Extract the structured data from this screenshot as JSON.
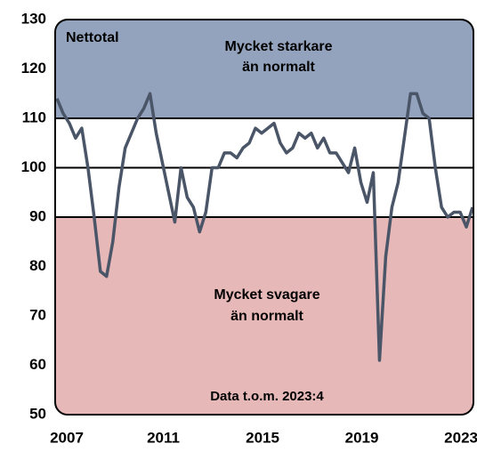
{
  "chart_data": {
    "type": "line",
    "annotations": [
      "Nettotal",
      "Mycket starkare",
      "än normalt",
      "Mycket svagare",
      "än normalt",
      "Data t.o.m. 2023:4"
    ],
    "x": [
      2007,
      2007.25,
      2007.5,
      2007.75,
      2008,
      2008.25,
      2008.5,
      2008.75,
      2009,
      2009.25,
      2009.5,
      2009.75,
      2010,
      2010.25,
      2010.5,
      2010.75,
      2011,
      2011.25,
      2011.5,
      2011.75,
      2012,
      2012.25,
      2012.5,
      2012.75,
      2013,
      2013.25,
      2013.5,
      2013.75,
      2014,
      2014.25,
      2014.5,
      2014.75,
      2015,
      2015.25,
      2015.5,
      2015.75,
      2016,
      2016.25,
      2016.5,
      2016.75,
      2017,
      2017.25,
      2017.5,
      2017.75,
      2018,
      2018.25,
      2018.5,
      2018.75,
      2019,
      2019.25,
      2019.5,
      2019.75,
      2020,
      2020.25,
      2020.5,
      2020.75,
      2021,
      2021.25,
      2021.5,
      2021.75,
      2022,
      2022.25,
      2022.5,
      2022.75,
      2023,
      2023.25,
      2023.5,
      2023.75
    ],
    "series": [
      {
        "name": "Nettotal",
        "color": "#4a5568",
        "values": [
          114,
          111,
          109,
          106,
          108,
          100,
          90,
          79,
          78,
          85,
          96,
          104,
          107,
          110,
          112,
          115,
          107,
          101,
          95,
          89,
          100,
          94,
          92,
          87,
          91,
          100,
          100,
          103,
          103,
          102,
          104,
          105,
          108,
          107,
          108,
          109,
          105,
          103,
          104,
          107,
          106,
          107,
          104,
          106,
          103,
          103,
          101,
          99,
          104,
          97,
          93,
          99,
          61,
          82,
          92,
          97,
          106,
          115,
          115,
          111,
          110,
          100,
          92,
          90,
          91,
          91,
          88,
          92
        ]
      }
    ],
    "xlim": [
      2007,
      2023.75
    ],
    "xticks": [
      2007,
      2011,
      2015,
      2019,
      2023
    ],
    "ylim": [
      50,
      130
    ],
    "yticks": [
      50,
      60,
      70,
      80,
      90,
      100,
      110,
      120,
      130
    ],
    "bands": [
      {
        "from": 110,
        "to": 130,
        "color": "#94a3bd"
      },
      {
        "from": 50,
        "to": 90,
        "color": "#e6b8b7"
      }
    ],
    "hlines": [
      90,
      100,
      110
    ]
  }
}
